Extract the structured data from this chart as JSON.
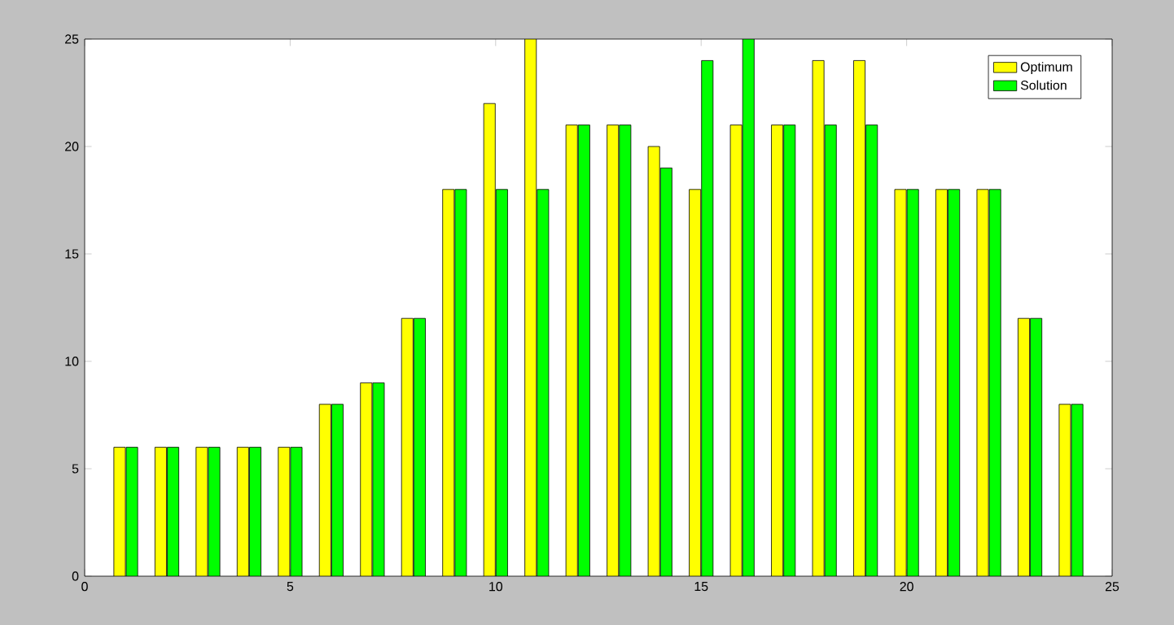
{
  "chart_data": {
    "type": "bar",
    "x": [
      1,
      2,
      3,
      4,
      5,
      6,
      7,
      8,
      9,
      10,
      11,
      12,
      13,
      14,
      15,
      16,
      17,
      18,
      19,
      20,
      21,
      22,
      23,
      24
    ],
    "series": [
      {
        "name": "Optimum",
        "color": "#ffff00",
        "values": [
          6,
          6,
          6,
          6,
          6,
          8,
          9,
          12,
          18,
          22,
          25,
          21,
          21,
          20,
          18,
          21,
          21,
          24,
          24,
          18,
          18,
          18,
          12,
          8
        ]
      },
      {
        "name": "Solution",
        "color": "#00ff00",
        "values": [
          6,
          6,
          6,
          6,
          6,
          8,
          9,
          12,
          18,
          18,
          18,
          21,
          21,
          19,
          24,
          25,
          21,
          21,
          21,
          18,
          18,
          18,
          12,
          8
        ]
      }
    ],
    "xlim": [
      0,
      25
    ],
    "ylim": [
      0,
      25
    ],
    "xticks": [
      0,
      5,
      10,
      15,
      20,
      25
    ],
    "yticks": [
      0,
      5,
      10,
      15,
      20,
      25
    ],
    "legend": "top right"
  }
}
